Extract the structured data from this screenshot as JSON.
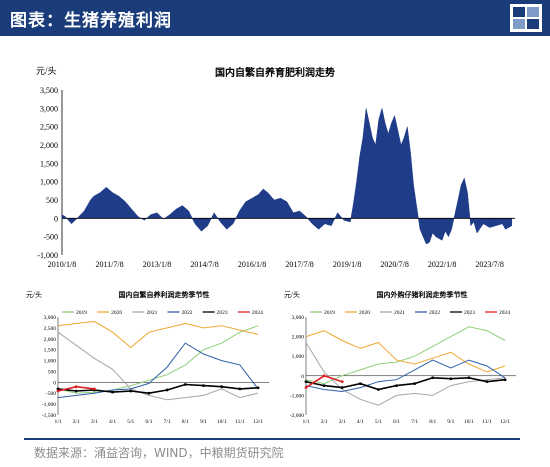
{
  "header": {
    "title": "图表：生猪养殖利润"
  },
  "source": "数据来源：涌益咨询，WIND，中粮期货研究院",
  "colors": {
    "header_bg": "#1a3c7a",
    "main_fill": "#1f3c88"
  },
  "chart_data": [
    {
      "type": "area",
      "title": "国内自繁自养育肥利润走势",
      "unit_label": "元/头",
      "ylim": [
        -1000,
        3500
      ],
      "yticks": [
        "3,500",
        "3,000",
        "2,500",
        "2,000",
        "1,500",
        "1,000",
        "500",
        "0",
        "-500",
        "-1,000"
      ],
      "ytick_values": [
        3500,
        3000,
        2500,
        2000,
        1500,
        1000,
        500,
        0,
        -500,
        -1000
      ],
      "xtick_labels": [
        "2010/1/8",
        "2011/7/8",
        "2013/1/8",
        "2014/7/8",
        "2016/1/8",
        "2017/7/8",
        "2019/1/8",
        "2020/7/8",
        "2022/1/8",
        "2023/7/8"
      ],
      "xtick_years": [
        2010.0,
        2011.5,
        2013.0,
        2014.5,
        2016.0,
        2017.5,
        2019.0,
        2020.5,
        2022.0,
        2023.5
      ],
      "xlim": [
        2010.0,
        2024.3
      ],
      "series": [
        {
          "x": [
            2010.0,
            2010.1,
            2010.3,
            2010.5,
            2010.7,
            2010.9,
            2011.0,
            2011.2,
            2011.4,
            2011.6,
            2011.8,
            2012.0,
            2012.2,
            2012.4,
            2012.6,
            2012.8,
            2013.0,
            2013.2,
            2013.4,
            2013.6,
            2013.8,
            2014.0,
            2014.2,
            2014.4,
            2014.6,
            2014.8,
            2015.0,
            2015.2,
            2015.4,
            2015.6,
            2015.8,
            2016.0,
            2016.2,
            2016.35,
            2016.5,
            2016.7,
            2016.9,
            2017.1,
            2017.3,
            2017.5,
            2017.7,
            2017.9,
            2018.1,
            2018.3,
            2018.5,
            2018.7,
            2018.9,
            2019.1,
            2019.2,
            2019.3,
            2019.4,
            2019.5,
            2019.6,
            2019.7,
            2019.8,
            2019.9,
            2020.0,
            2020.1,
            2020.2,
            2020.3,
            2020.4,
            2020.5,
            2020.6,
            2020.7,
            2020.8,
            2020.9,
            2021.0,
            2021.1,
            2021.2,
            2021.3,
            2021.4,
            2021.5,
            2021.6,
            2021.7,
            2021.8,
            2021.9,
            2022.0,
            2022.1,
            2022.2,
            2022.3,
            2022.5,
            2022.6,
            2022.7,
            2022.8,
            2022.9,
            2023.0,
            2023.1,
            2023.3,
            2023.5,
            2023.7,
            2023.9,
            2024.0,
            2024.1,
            2024.2
          ],
          "y": [
            100,
            50,
            -150,
            20,
            200,
            500,
            600,
            700,
            850,
            700,
            600,
            450,
            250,
            50,
            -50,
            100,
            150,
            -20,
            100,
            250,
            350,
            200,
            -150,
            -350,
            -200,
            150,
            -100,
            -300,
            -150,
            200,
            450,
            550,
            650,
            800,
            700,
            500,
            550,
            450,
            150,
            200,
            50,
            -150,
            -300,
            -150,
            -200,
            150,
            -50,
            -100,
            400,
            1000,
            1700,
            2200,
            3000,
            2600,
            2200,
            2000,
            2700,
            3000,
            2600,
            2300,
            2600,
            2800,
            2400,
            2000,
            2200,
            2500,
            1800,
            900,
            300,
            -300,
            -500,
            -700,
            -650,
            -400,
            -500,
            -550,
            -600,
            -350,
            -500,
            -300,
            500,
            900,
            1100,
            700,
            -200,
            -100,
            -400,
            -150,
            -250,
            -200,
            -150,
            -300,
            -250,
            -200
          ]
        }
      ]
    },
    {
      "type": "line",
      "title": "国内自繁自养利润走势季节性",
      "unit_label": "元/头",
      "ylim": [
        -1500,
        3000
      ],
      "yticks": [
        "3,000",
        "2,500",
        "2,000",
        "1,500",
        "1,000",
        "500",
        "0",
        "-500",
        "-1,000",
        "-1,500"
      ],
      "ytick_values": [
        3000,
        2500,
        2000,
        1500,
        1000,
        500,
        0,
        -500,
        -1000,
        -1500
      ],
      "xtick_labels": [
        "1/1",
        "2/1",
        "3/1",
        "4/1",
        "5/1",
        "6/1",
        "7/1",
        "8/1",
        "9/1",
        "10/1",
        "11/1",
        "12/1"
      ],
      "series": [
        {
          "name": "2019",
          "color": "#8fcf7a",
          "values": [
            -300,
            -500,
            -450,
            -350,
            -150,
            100,
            350,
            800,
            1500,
            1800,
            2300,
            2600
          ]
        },
        {
          "name": "2020",
          "color": "#f0a830",
          "values": [
            2600,
            2700,
            2800,
            2300,
            1600,
            2300,
            2500,
            2700,
            2500,
            2600,
            2400,
            2200
          ]
        },
        {
          "name": "2021",
          "color": "#a6a6a6",
          "values": [
            2300,
            1700,
            1100,
            600,
            -300,
            -600,
            -800,
            -700,
            -600,
            -300,
            -700,
            -500
          ]
        },
        {
          "name": "2022",
          "color": "#2f5fa8",
          "values": [
            -700,
            -600,
            -500,
            -350,
            -300,
            -50,
            700,
            1800,
            1300,
            1000,
            800,
            -300
          ]
        },
        {
          "name": "2023",
          "color": "#000000",
          "values": [
            -300,
            -400,
            -350,
            -450,
            -400,
            -500,
            -350,
            -100,
            -150,
            -200,
            -300,
            -250
          ]
        },
        {
          "name": "2024",
          "color": "#e02020",
          "values": [
            -400,
            -200,
            -300
          ]
        }
      ]
    },
    {
      "type": "line",
      "title": "国内外购仔猪利润走势季节性",
      "unit_label": "元/头",
      "ylim": [
        -2000,
        3000
      ],
      "yticks": [
        "3,000",
        "2,000",
        "1,000",
        "0",
        "-1,000",
        "-2,000"
      ],
      "ytick_values": [
        3000,
        2000,
        1000,
        0,
        -1000,
        -2000
      ],
      "xtick_labels": [
        "1/1",
        "2/1",
        "3/1",
        "4/1",
        "5/1",
        "6/1",
        "7/1",
        "8/1",
        "9/1",
        "10/1",
        "11/1",
        "12/1"
      ],
      "series": [
        {
          "name": "2019",
          "color": "#8fcf7a",
          "values": [
            -200,
            -400,
            0,
            300,
            600,
            700,
            1000,
            1500,
            2000,
            2500,
            2300,
            1800
          ]
        },
        {
          "name": "2020",
          "color": "#f0a830",
          "values": [
            2000,
            2300,
            1800,
            1400,
            1700,
            800,
            600,
            900,
            1200,
            600,
            200,
            500
          ]
        },
        {
          "name": "2021",
          "color": "#a6a6a6",
          "values": [
            1700,
            200,
            -700,
            -1200,
            -1500,
            -1000,
            -900,
            -1000,
            -500,
            -300,
            -200,
            -100
          ]
        },
        {
          "name": "2022",
          "color": "#2f5fa8",
          "values": [
            -500,
            -700,
            -800,
            -600,
            -300,
            -200,
            300,
            800,
            400,
            800,
            500,
            -100
          ]
        },
        {
          "name": "2023",
          "color": "#000000",
          "values": [
            -300,
            -500,
            -600,
            -400,
            -700,
            -500,
            -400,
            -100,
            -150,
            -100,
            -300,
            -200
          ]
        },
        {
          "name": "2024",
          "color": "#e02020",
          "values": [
            -600,
            0,
            -300
          ]
        }
      ]
    }
  ]
}
